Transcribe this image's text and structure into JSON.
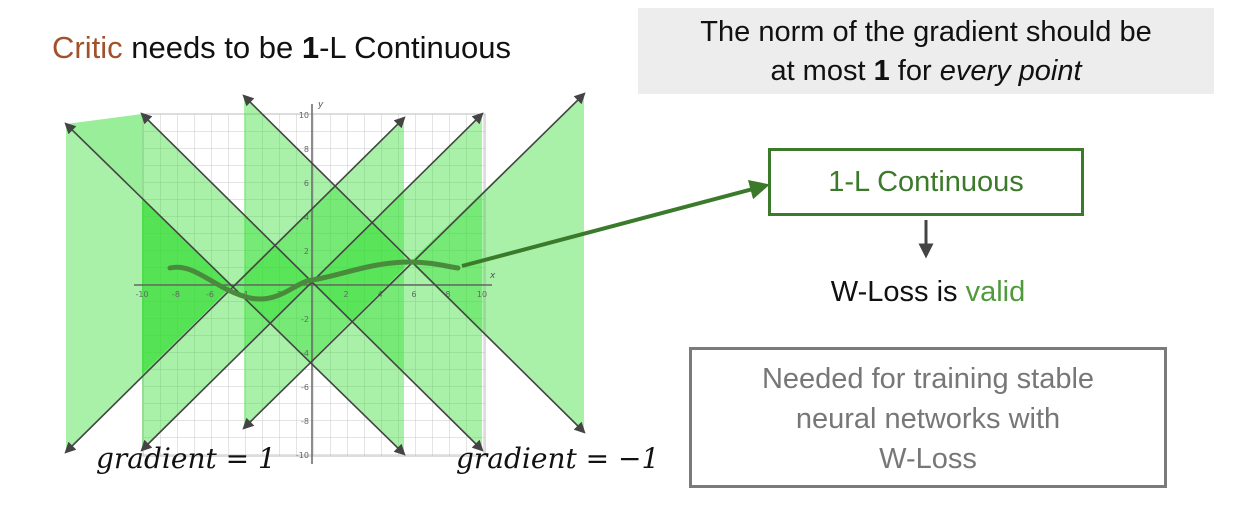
{
  "title": {
    "critic": "Critic",
    "part1": " needs to be ",
    "bold_one": "1",
    "part2": "-L Continuous"
  },
  "note": {
    "line1": "The norm of the gradient should be",
    "line2_pre": "at most ",
    "line2_bold": "1",
    "line2_mid": " for ",
    "line2_italic": "every point"
  },
  "flow": {
    "box_label": "1-L Continuous",
    "wloss_pre": "W-Loss is ",
    "wloss_valid": "valid",
    "needed_line1": "Needed for training stable",
    "needed_line2": "neural networks with",
    "needed_line3": "W-Loss"
  },
  "labels": {
    "gradient_pos": "gradient = 1",
    "gradient_neg": "gradient = −1"
  },
  "axes": {
    "x_label": "x",
    "y_label": "y",
    "x_ticks": [
      "-10",
      "-8",
      "-6",
      "-4",
      "-2",
      "2",
      "4",
      "6",
      "8",
      "10"
    ],
    "y_ticks": [
      "10",
      "8",
      "6",
      "4",
      "2",
      "-2",
      "-4",
      "-6",
      "-8",
      "-10"
    ]
  },
  "colors": {
    "critic": "#a0522d",
    "accent_green": "#3b7a2a",
    "valid_green": "#4f9a3a",
    "cone_fill": "#33dd33",
    "curve": "#4a8a3c",
    "gray_box": "#7a7a7a"
  }
}
